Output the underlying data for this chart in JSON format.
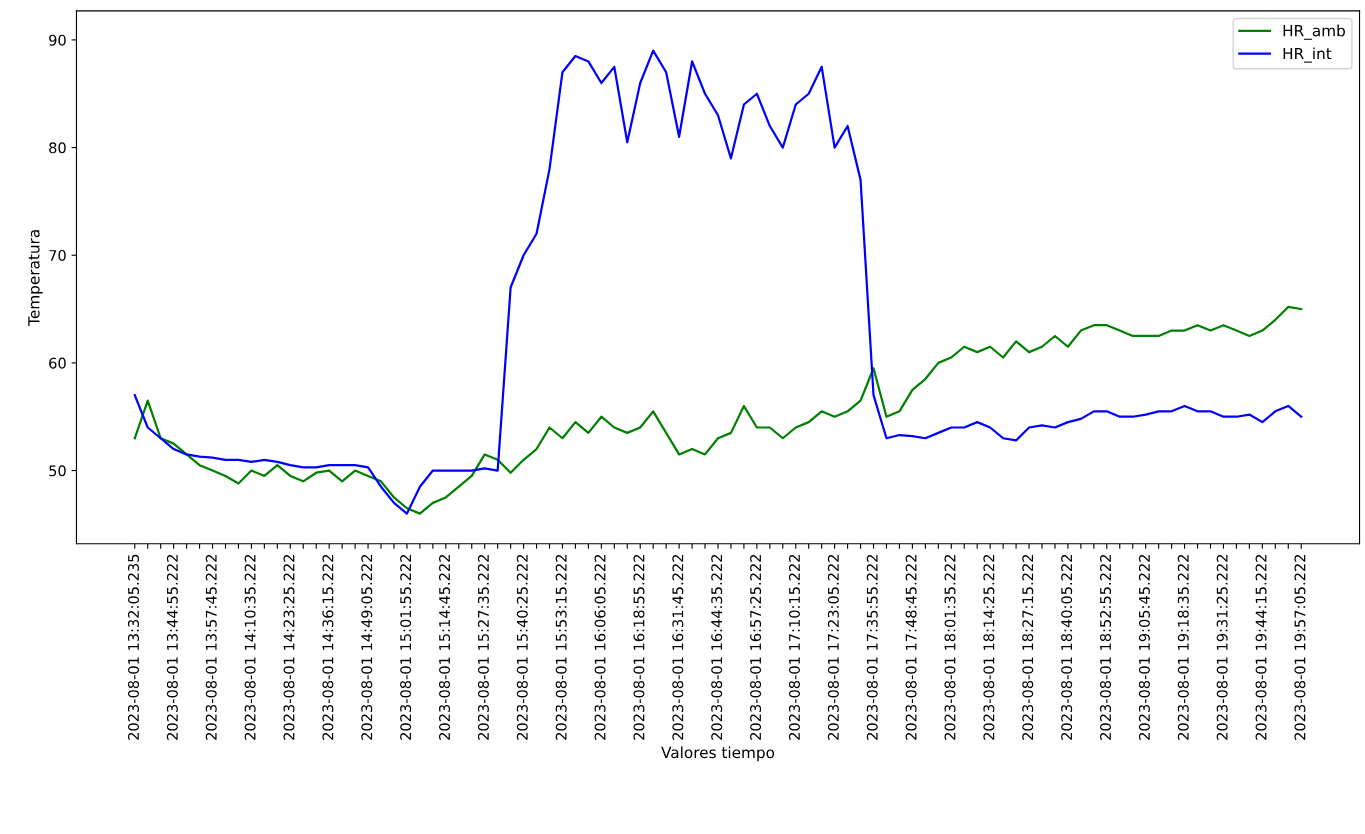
{
  "chart_data": {
    "type": "line",
    "xlabel": "Valores tiempo",
    "ylabel": "Temperatura",
    "legend": "top right",
    "grid": false,
    "ylim": [
      43.2,
      92.7
    ],
    "yticks": [
      50,
      60,
      70,
      80,
      90
    ],
    "categories": [
      "2023-08-01 13:32:05.235",
      null,
      null,
      "2023-08-01 13:44:55.222",
      null,
      null,
      "2023-08-01 13:57:45.222",
      null,
      null,
      "2023-08-01 14:10:35.222",
      null,
      null,
      "2023-08-01 14:23:25.222",
      null,
      null,
      "2023-08-01 14:36:15.222",
      null,
      null,
      "2023-08-01 14:49:05.222",
      null,
      null,
      "2023-08-01 15:01:55.222",
      null,
      null,
      "2023-08-01 15:14:45.222",
      null,
      null,
      "2023-08-01 15:27:35.222",
      null,
      null,
      "2023-08-01 15:40:25.222",
      null,
      null,
      "2023-08-01 15:53:15.222",
      null,
      null,
      "2023-08-01 16:06:05.222",
      null,
      null,
      "2023-08-01 16:18:55.222",
      null,
      null,
      "2023-08-01 16:31:45.222",
      null,
      null,
      "2023-08-01 16:44:35.222",
      null,
      null,
      "2023-08-01 16:57:25.222",
      null,
      null,
      "2023-08-01 17:10:15.222",
      null,
      null,
      "2023-08-01 17:23:05.222",
      null,
      null,
      "2023-08-01 17:35:55.222",
      null,
      null,
      "2023-08-01 17:48:45.222",
      null,
      null,
      "2023-08-01 18:01:35.222",
      null,
      null,
      "2023-08-01 18:14:25.222",
      null,
      null,
      "2023-08-01 18:27:15.222",
      null,
      null,
      "2023-08-01 18:40:05.222",
      null,
      null,
      "2023-08-01 18:52:55.222",
      null,
      null,
      "2023-08-01 19:05:45.222",
      null,
      null,
      "2023-08-01 19:18:35.222",
      null,
      null,
      "2023-08-01 19:31:25.222",
      null,
      null,
      "2023-08-01 19:44:15.222",
      null,
      null,
      "2023-08-01 19:57:05.222"
    ],
    "series": [
      {
        "name": "HR_amb",
        "color": "#008000",
        "values": [
          53,
          56.5,
          53,
          52.5,
          51.5,
          50.5,
          50,
          49.5,
          48.8,
          50,
          49.5,
          50.5,
          49.5,
          49,
          49.8,
          50,
          49,
          50,
          49.5,
          49,
          47.5,
          46.5,
          46,
          47,
          47.5,
          48.5,
          49.5,
          51.5,
          51,
          49.8,
          51,
          52,
          54,
          53,
          54.5,
          53.5,
          55,
          54,
          53.5,
          54,
          55.5,
          53.5,
          51.5,
          52,
          51.5,
          53,
          53.5,
          56,
          54,
          54,
          53,
          54,
          54.5,
          55.5,
          55,
          55.5,
          56.5,
          59.5,
          55,
          55.5,
          57.5,
          58.5,
          60,
          60.5,
          61.5,
          61,
          61.5,
          60.5,
          62,
          61,
          61.5,
          62.5,
          61.5,
          63,
          63.5,
          63.5,
          63,
          62.5,
          62.5,
          62.5,
          63,
          63,
          63.5,
          63,
          63.5,
          63,
          62.5,
          63,
          64,
          65.2,
          65
        ]
      },
      {
        "name": "HR_int",
        "color": "#0000ff",
        "values": [
          57,
          54,
          53,
          52,
          51.5,
          51.3,
          51.2,
          51,
          51,
          50.8,
          51,
          50.8,
          50.5,
          50.3,
          50.3,
          50.5,
          50.5,
          50.5,
          50.3,
          48.5,
          47,
          46,
          48.5,
          50,
          50,
          50,
          50,
          50.2,
          50,
          67,
          70,
          72,
          78,
          87,
          88.5,
          88,
          86,
          87.5,
          80.5,
          86,
          89,
          87,
          81,
          88,
          85,
          83,
          79,
          84,
          85,
          82,
          80,
          84,
          85,
          87.5,
          80,
          82,
          77,
          57,
          53,
          53.3,
          53.2,
          53,
          53.5,
          54,
          54,
          54.5,
          54,
          53,
          52.8,
          54,
          54.2,
          54,
          54.5,
          54.8,
          55.5,
          55.5,
          55,
          55,
          55.2,
          55.5,
          55.5,
          56,
          55.5,
          55.5,
          55,
          55,
          55.2,
          54.5,
          55.5,
          56,
          55
        ]
      }
    ]
  }
}
